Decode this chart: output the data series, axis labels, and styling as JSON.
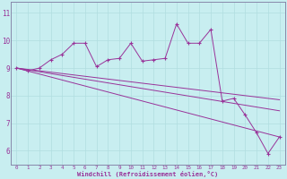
{
  "xlabel": "Windchill (Refroidissement éolien,°C)",
  "ylabel": "",
  "background_color": "#c8eef0",
  "line_color": "#993399",
  "grid_color": "#b0dde0",
  "spine_color": "#8888aa",
  "x_ticks": [
    0,
    1,
    2,
    3,
    4,
    5,
    6,
    7,
    8,
    9,
    10,
    11,
    12,
    13,
    14,
    15,
    16,
    17,
    18,
    19,
    20,
    21,
    22,
    23
  ],
  "y_ticks": [
    6,
    7,
    8,
    9,
    10,
    11
  ],
  "ylim": [
    5.5,
    11.4
  ],
  "xlim": [
    -0.5,
    23.5
  ],
  "line1_x": [
    0,
    1,
    2,
    3,
    4,
    5,
    6,
    7,
    8,
    9,
    10,
    11,
    12,
    13,
    14,
    15,
    16,
    17,
    18,
    19,
    20,
    21,
    22,
    23
  ],
  "line1_y": [
    9.0,
    8.9,
    9.0,
    9.3,
    9.5,
    9.9,
    9.9,
    9.05,
    9.3,
    9.35,
    9.9,
    9.25,
    9.3,
    9.35,
    10.6,
    9.9,
    9.9,
    10.4,
    7.8,
    7.9,
    7.3,
    6.65,
    5.9,
    6.5
  ],
  "line2_y_start": 9.0,
  "line2_y_end": 7.85,
  "line3_y_start": 9.0,
  "line3_y_end": 7.45,
  "line4_y_start": 9.0,
  "line4_y_end": 6.5
}
